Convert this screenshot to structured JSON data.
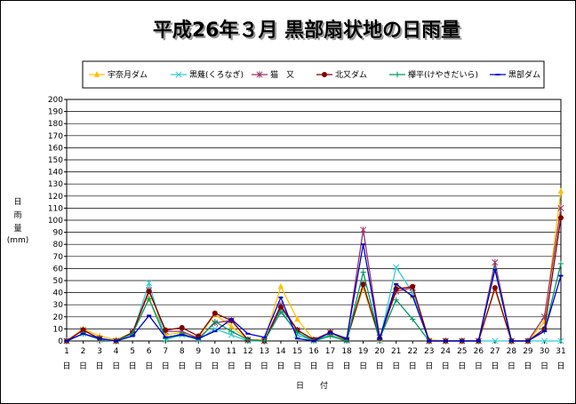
{
  "chart_data": {
    "type": "line",
    "title": "平成26年３月 黒部扇状地の日雨量",
    "ylabel": [
      "日",
      "雨",
      "量",
      "(mm)"
    ],
    "xlabel": "日　　付",
    "x_suffix": "日",
    "ylim": [
      0,
      200
    ],
    "ystep": 10,
    "grid": true,
    "legend_position": "top",
    "x": [
      1,
      2,
      3,
      4,
      5,
      6,
      7,
      8,
      9,
      10,
      11,
      12,
      13,
      14,
      15,
      16,
      17,
      18,
      19,
      20,
      21,
      22,
      23,
      24,
      25,
      26,
      27,
      28,
      29,
      30,
      31
    ],
    "series": [
      {
        "name": "宇奈月ダム",
        "color": "#ffc000",
        "marker": "triangle",
        "values": [
          0,
          10,
          4,
          1,
          7,
          35,
          5,
          7,
          3,
          22,
          12,
          1,
          1,
          45,
          18,
          1,
          5,
          1,
          44,
          1,
          46,
          37,
          1,
          0,
          0,
          0,
          43,
          0,
          0,
          16,
          124
        ]
      },
      {
        "name": "黒薙(くろなぎ)",
        "color": "#33cccc",
        "marker": "x",
        "values": [
          0,
          6,
          1,
          0,
          6,
          48,
          1,
          5,
          1,
          10,
          5,
          0,
          0,
          26,
          5,
          0,
          5,
          0,
          47,
          0,
          61,
          40,
          0,
          0,
          0,
          0,
          0,
          0,
          0,
          0,
          0
        ]
      },
      {
        "name": "猫　又",
        "color": "#993366",
        "marker": "star",
        "values": [
          0,
          9,
          2,
          0,
          7,
          42,
          8,
          8,
          2,
          15,
          17,
          1,
          0,
          30,
          9,
          1,
          7,
          1,
          92,
          3,
          41,
          44,
          0,
          0,
          0,
          0,
          65,
          0,
          0,
          20,
          110
        ]
      },
      {
        "name": "北又ダム",
        "color": "#800000",
        "marker": "circle",
        "values": [
          0,
          9,
          2,
          0,
          7,
          41,
          9,
          11,
          4,
          23,
          17,
          1,
          0,
          28,
          9,
          1,
          7,
          1,
          47,
          2,
          43,
          45,
          0,
          0,
          0,
          0,
          44,
          0,
          0,
          10,
          102
        ]
      },
      {
        "name": "欅平(けやきだいら)",
        "color": "#009966",
        "marker": "plus",
        "values": [
          0,
          6,
          2,
          0,
          6,
          35,
          2,
          6,
          1,
          16,
          8,
          1,
          0,
          24,
          7,
          0,
          4,
          0,
          57,
          2,
          34,
          18,
          0,
          0,
          0,
          0,
          60,
          0,
          0,
          8,
          64
        ]
      },
      {
        "name": "黒部ダム",
        "color": "#0000cc",
        "marker": "dash",
        "values": [
          0,
          6,
          2,
          0,
          4,
          21,
          3,
          5,
          2,
          8,
          18,
          6,
          3,
          36,
          2,
          0,
          7,
          2,
          80,
          2,
          47,
          37,
          0,
          0,
          0,
          0,
          59,
          0,
          0,
          8,
          54
        ]
      }
    ]
  }
}
